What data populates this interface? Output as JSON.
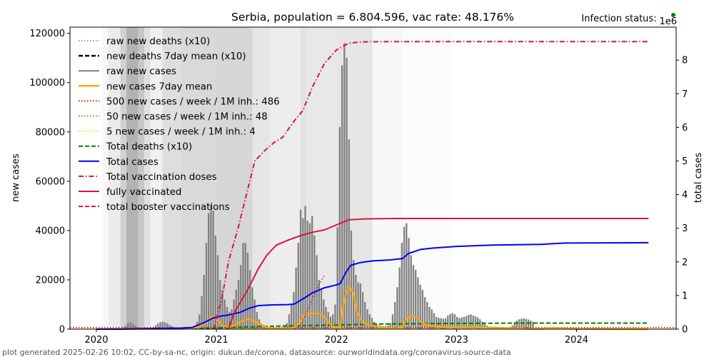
{
  "chart_data": {
    "type": "bar",
    "title": "Serbia, population = 6.804.596, vac rate: 48.176%",
    "status_label": "Infection status:",
    "status_color": "#008000",
    "right_axis_multiplier": "1e6",
    "xlabel": "",
    "ylabel_left": "new cases",
    "ylabel_right": "total cases",
    "ylim_left": [
      0,
      122500
    ],
    "ylim_right": [
      0,
      8.98
    ],
    "xlim": [
      2019.78,
      2024.83
    ],
    "x_ticks": [
      {
        "value": 2020,
        "label": "2020"
      },
      {
        "value": 2021,
        "label": "2021"
      },
      {
        "value": 2022,
        "label": "2022"
      },
      {
        "value": 2023,
        "label": "2023"
      },
      {
        "value": 2024,
        "label": "2024"
      }
    ],
    "y_ticks_left": [
      {
        "value": 0,
        "label": "0"
      },
      {
        "value": 20000,
        "label": "20000"
      },
      {
        "value": 40000,
        "label": "40000"
      },
      {
        "value": 60000,
        "label": "60000"
      },
      {
        "value": 80000,
        "label": "80000"
      },
      {
        "value": 100000,
        "label": "100000"
      },
      {
        "value": 120000,
        "label": "120000"
      }
    ],
    "y_ticks_right": [
      {
        "value": 0,
        "label": "0"
      },
      {
        "value": 1,
        "label": "1"
      },
      {
        "value": 2,
        "label": "2"
      },
      {
        "value": 3,
        "label": "3"
      },
      {
        "value": 4,
        "label": "4"
      },
      {
        "value": 5,
        "label": "5"
      },
      {
        "value": 6,
        "label": "6"
      },
      {
        "value": 7,
        "label": "7"
      },
      {
        "value": 8,
        "label": "8"
      }
    ],
    "legend": {
      "placement": "top-left",
      "entries": [
        {
          "label": "raw new deaths (x10)",
          "color": "#808080",
          "style": "dotted",
          "width": 1.5
        },
        {
          "label": "new deaths 7day mean (x10)",
          "color": "#000000",
          "style": "dashed",
          "width": 2.5
        },
        {
          "label": "raw new cases",
          "color": "#808080",
          "style": "solid",
          "width": 2
        },
        {
          "label": "new cases 7day mean",
          "color": "#ffa500",
          "style": "solid",
          "width": 2.5
        },
        {
          "label": "500 new cases / week / 1M inh.: 486",
          "color": "#ff0000",
          "style": "dotted",
          "width": 2
        },
        {
          "label": "50 new cases / week / 1M inh.: 48",
          "color": "#d2691e",
          "style": "dotted",
          "width": 2
        },
        {
          "label": "5 new cases / week / 1M inh.: 4",
          "color": "#ffd700",
          "style": "dotted",
          "width": 2
        },
        {
          "label": "Total deaths (x10)",
          "color": "#008000",
          "style": "dashed",
          "width": 2
        },
        {
          "label": "Total cases",
          "color": "#0000ff",
          "style": "solid",
          "width": 2
        },
        {
          "label": "Total vaccination doses",
          "color": "#dc143c",
          "style": "dashdot",
          "width": 2
        },
        {
          "label": "fully vaccinated",
          "color": "#dc143c",
          "style": "solid",
          "width": 2
        },
        {
          "label": "total booster vaccinations",
          "color": "#dc143c",
          "style": "dashed",
          "width": 2
        }
      ]
    },
    "background_bands": [
      {
        "x0": 2019.78,
        "x1": 2020.05,
        "gray": 1.0
      },
      {
        "x0": 2020.05,
        "x1": 2020.1,
        "gray": 0.97
      },
      {
        "x0": 2020.1,
        "x1": 2020.2,
        "gray": 0.92
      },
      {
        "x0": 2020.2,
        "x1": 2020.25,
        "gray": 0.82
      },
      {
        "x0": 2020.25,
        "x1": 2020.35,
        "gray": 0.7
      },
      {
        "x0": 2020.35,
        "x1": 2020.4,
        "gray": 0.78
      },
      {
        "x0": 2020.4,
        "x1": 2020.45,
        "gray": 0.88
      },
      {
        "x0": 2020.45,
        "x1": 2020.55,
        "gray": 0.94
      },
      {
        "x0": 2020.55,
        "x1": 2020.7,
        "gray": 0.87
      },
      {
        "x0": 2020.7,
        "x1": 2021.0,
        "gray": 0.85
      },
      {
        "x0": 2021.0,
        "x1": 2021.3,
        "gray": 0.84
      },
      {
        "x0": 2021.3,
        "x1": 2021.45,
        "gray": 0.9
      },
      {
        "x0": 2021.45,
        "x1": 2021.7,
        "gray": 0.93
      },
      {
        "x0": 2021.7,
        "x1": 2021.75,
        "gray": 0.89
      },
      {
        "x0": 2021.75,
        "x1": 2022.0,
        "gray": 0.91
      },
      {
        "x0": 2022.0,
        "x1": 2022.3,
        "gray": 0.9
      },
      {
        "x0": 2022.3,
        "x1": 2022.55,
        "gray": 0.97
      },
      {
        "x0": 2022.55,
        "x1": 2022.95,
        "gray": 0.985
      },
      {
        "x0": 2022.95,
        "x1": 2024.83,
        "gray": 1.0
      }
    ],
    "raw_new_cases": {
      "x_start": 2020.2,
      "step_weeks": 1,
      "values": [
        300,
        800,
        1500,
        2500,
        2800,
        2200,
        1500,
        800,
        400,
        200,
        150,
        100,
        200,
        400,
        800,
        1500,
        2300,
        2800,
        3000,
        2800,
        2400,
        1800,
        1200,
        700,
        500,
        300,
        250,
        250,
        300,
        350,
        500,
        800,
        1500,
        3000,
        6000,
        13500,
        22000,
        35000,
        47000,
        50500,
        48000,
        38000,
        30000,
        20000,
        16000,
        12000,
        9000,
        7000,
        8000,
        12000,
        16000,
        20000,
        26000,
        35000,
        35000,
        31000,
        24000,
        17000,
        12000,
        7000,
        4000,
        2000,
        1200,
        800,
        500,
        400,
        300,
        300,
        400,
        500,
        700,
        1200,
        2500,
        6000,
        10000,
        15000,
        25000,
        35000,
        48500,
        45000,
        50000,
        44000,
        43000,
        46000,
        38000,
        30000,
        20000,
        16000,
        12000,
        9000,
        7000,
        5000,
        6000,
        10000,
        41500,
        82000,
        107000,
        116000,
        110000,
        77000,
        40000,
        28000,
        22000,
        19000,
        18500,
        15000,
        11000,
        8000,
        6000,
        4500,
        3000,
        2000,
        1500,
        1300,
        1200,
        1200,
        1500,
        2500,
        6000,
        11000,
        17000,
        25000,
        35000,
        41500,
        43000,
        37000,
        30000,
        26000,
        24000,
        21000,
        18000,
        16000,
        13000,
        11000,
        9000,
        8000,
        6500,
        5000,
        4600,
        4500,
        4200,
        4400,
        5500,
        6200,
        6500,
        6000,
        5000,
        4500,
        4700,
        5000,
        5300,
        5800,
        6000,
        5500,
        5200,
        4800,
        4000,
        3000,
        2000,
        1500,
        1000,
        700,
        500,
        400,
        300,
        300,
        300,
        300,
        400,
        700,
        1500,
        2800,
        3500,
        4000,
        4200,
        4300,
        4200,
        3900,
        3500,
        3000
      ]
    },
    "new_cases_7day_mean": [
      [
        2020.2,
        100
      ],
      [
        2020.75,
        200
      ],
      [
        2020.85,
        800
      ],
      [
        2020.92,
        3000
      ],
      [
        2020.96,
        5200
      ],
      [
        2021.0,
        4500
      ],
      [
        2021.05,
        1500
      ],
      [
        2021.1,
        800
      ],
      [
        2021.15,
        1500
      ],
      [
        2021.2,
        3000
      ],
      [
        2021.27,
        4200
      ],
      [
        2021.35,
        2500
      ],
      [
        2021.42,
        600
      ],
      [
        2021.5,
        200
      ],
      [
        2021.6,
        200
      ],
      [
        2021.65,
        600
      ],
      [
        2021.7,
        3000
      ],
      [
        2021.73,
        6000
      ],
      [
        2021.8,
        6500
      ],
      [
        2021.87,
        6200
      ],
      [
        2021.92,
        3500
      ],
      [
        2021.97,
        800
      ],
      [
        2022.03,
        800
      ],
      [
        2022.05,
        8000
      ],
      [
        2022.08,
        15000
      ],
      [
        2022.11,
        17000
      ],
      [
        2022.14,
        15000
      ],
      [
        2022.17,
        7000
      ],
      [
        2022.22,
        2500
      ],
      [
        2022.3,
        1500
      ],
      [
        2022.4,
        500
      ],
      [
        2022.5,
        300
      ],
      [
        2022.55,
        800
      ],
      [
        2022.58,
        4000
      ],
      [
        2022.62,
        5800
      ],
      [
        2022.67,
        4500
      ],
      [
        2022.72,
        2200
      ],
      [
        2022.8,
        1300
      ],
      [
        2022.9,
        900
      ],
      [
        2023.0,
        700
      ],
      [
        2023.3,
        700
      ],
      [
        2023.45,
        400
      ],
      [
        2023.6,
        100
      ],
      [
        2023.7,
        100
      ],
      [
        2023.75,
        300
      ],
      [
        2023.85,
        500
      ],
      [
        2023.92,
        200
      ],
      [
        2024.0,
        50
      ],
      [
        2024.6,
        10
      ]
    ],
    "total_cases_millions": [
      [
        2020.0,
        0.0
      ],
      [
        2020.2,
        0.0
      ],
      [
        2020.5,
        0.02
      ],
      [
        2020.7,
        0.03
      ],
      [
        2020.8,
        0.05
      ],
      [
        2020.9,
        0.2
      ],
      [
        2020.97,
        0.33
      ],
      [
        2021.05,
        0.4
      ],
      [
        2021.1,
        0.42
      ],
      [
        2021.2,
        0.5
      ],
      [
        2021.27,
        0.62
      ],
      [
        2021.35,
        0.7
      ],
      [
        2021.45,
        0.72
      ],
      [
        2021.6,
        0.73
      ],
      [
        2021.65,
        0.75
      ],
      [
        2021.72,
        0.9
      ],
      [
        2021.8,
        1.08
      ],
      [
        2021.9,
        1.23
      ],
      [
        2021.98,
        1.3
      ],
      [
        2022.03,
        1.35
      ],
      [
        2022.08,
        1.7
      ],
      [
        2022.12,
        1.9
      ],
      [
        2022.2,
        1.98
      ],
      [
        2022.3,
        2.03
      ],
      [
        2022.45,
        2.06
      ],
      [
        2022.55,
        2.1
      ],
      [
        2022.6,
        2.25
      ],
      [
        2022.7,
        2.37
      ],
      [
        2022.8,
        2.41
      ],
      [
        2023.0,
        2.46
      ],
      [
        2023.3,
        2.5
      ],
      [
        2023.7,
        2.52
      ],
      [
        2023.9,
        2.56
      ],
      [
        2024.6,
        2.57
      ]
    ],
    "total_deaths_x10_millions": [
      [
        2020.0,
        0.0
      ],
      [
        2020.9,
        0.02
      ],
      [
        2021.2,
        0.06
      ],
      [
        2021.6,
        0.1
      ],
      [
        2022.0,
        0.12
      ],
      [
        2022.3,
        0.15
      ],
      [
        2022.6,
        0.16
      ],
      [
        2023.0,
        0.17
      ],
      [
        2023.5,
        0.18
      ],
      [
        2024.6,
        0.18
      ]
    ],
    "total_vaccination_doses_millions": [
      [
        2020.98,
        0.0
      ],
      [
        2021.05,
        1.0
      ],
      [
        2021.1,
        2.0
      ],
      [
        2021.18,
        3.0
      ],
      [
        2021.25,
        4.0
      ],
      [
        2021.32,
        5.0
      ],
      [
        2021.4,
        5.3
      ],
      [
        2021.48,
        5.55
      ],
      [
        2021.55,
        5.7
      ],
      [
        2021.65,
        6.2
      ],
      [
        2021.72,
        6.5
      ],
      [
        2021.8,
        7.2
      ],
      [
        2021.9,
        7.9
      ],
      [
        2022.0,
        8.3
      ],
      [
        2022.1,
        8.5
      ],
      [
        2022.2,
        8.54
      ],
      [
        2022.4,
        8.55
      ],
      [
        2024.6,
        8.55
      ]
    ],
    "fully_vaccinated_millions": [
      [
        2021.1,
        0.0
      ],
      [
        2021.15,
        0.5
      ],
      [
        2021.25,
        1.1
      ],
      [
        2021.35,
        1.8
      ],
      [
        2021.42,
        2.2
      ],
      [
        2021.5,
        2.5
      ],
      [
        2021.6,
        2.65
      ],
      [
        2021.7,
        2.78
      ],
      [
        2021.8,
        2.88
      ],
      [
        2021.9,
        2.95
      ],
      [
        2022.0,
        3.1
      ],
      [
        2022.1,
        3.25
      ],
      [
        2022.25,
        3.28
      ],
      [
        2022.5,
        3.29
      ],
      [
        2024.6,
        3.29
      ]
    ],
    "total_booster_millions": [
      [
        2021.65,
        0.0
      ],
      [
        2021.7,
        0.1
      ],
      [
        2021.75,
        0.5
      ],
      [
        2021.8,
        0.9
      ],
      [
        2021.85,
        1.3
      ],
      [
        2021.9,
        1.6
      ]
    ],
    "threshold_lines": [
      {
        "name": "500 new cases / week / 1M inh.",
        "value": 486,
        "color": "#ff0000"
      },
      {
        "name": "50 new cases / week / 1M inh.",
        "value": 48,
        "color": "#d2691e"
      },
      {
        "name": "5 new cases / week / 1M inh.",
        "value": 4,
        "color": "#ffd700"
      }
    ]
  },
  "footer": "plot generated 2025-02-26 10:02, CC-by-sa-nc, origin: dukun.de/corona, datasource: ourworldindata.org/coronavirus-source-data"
}
